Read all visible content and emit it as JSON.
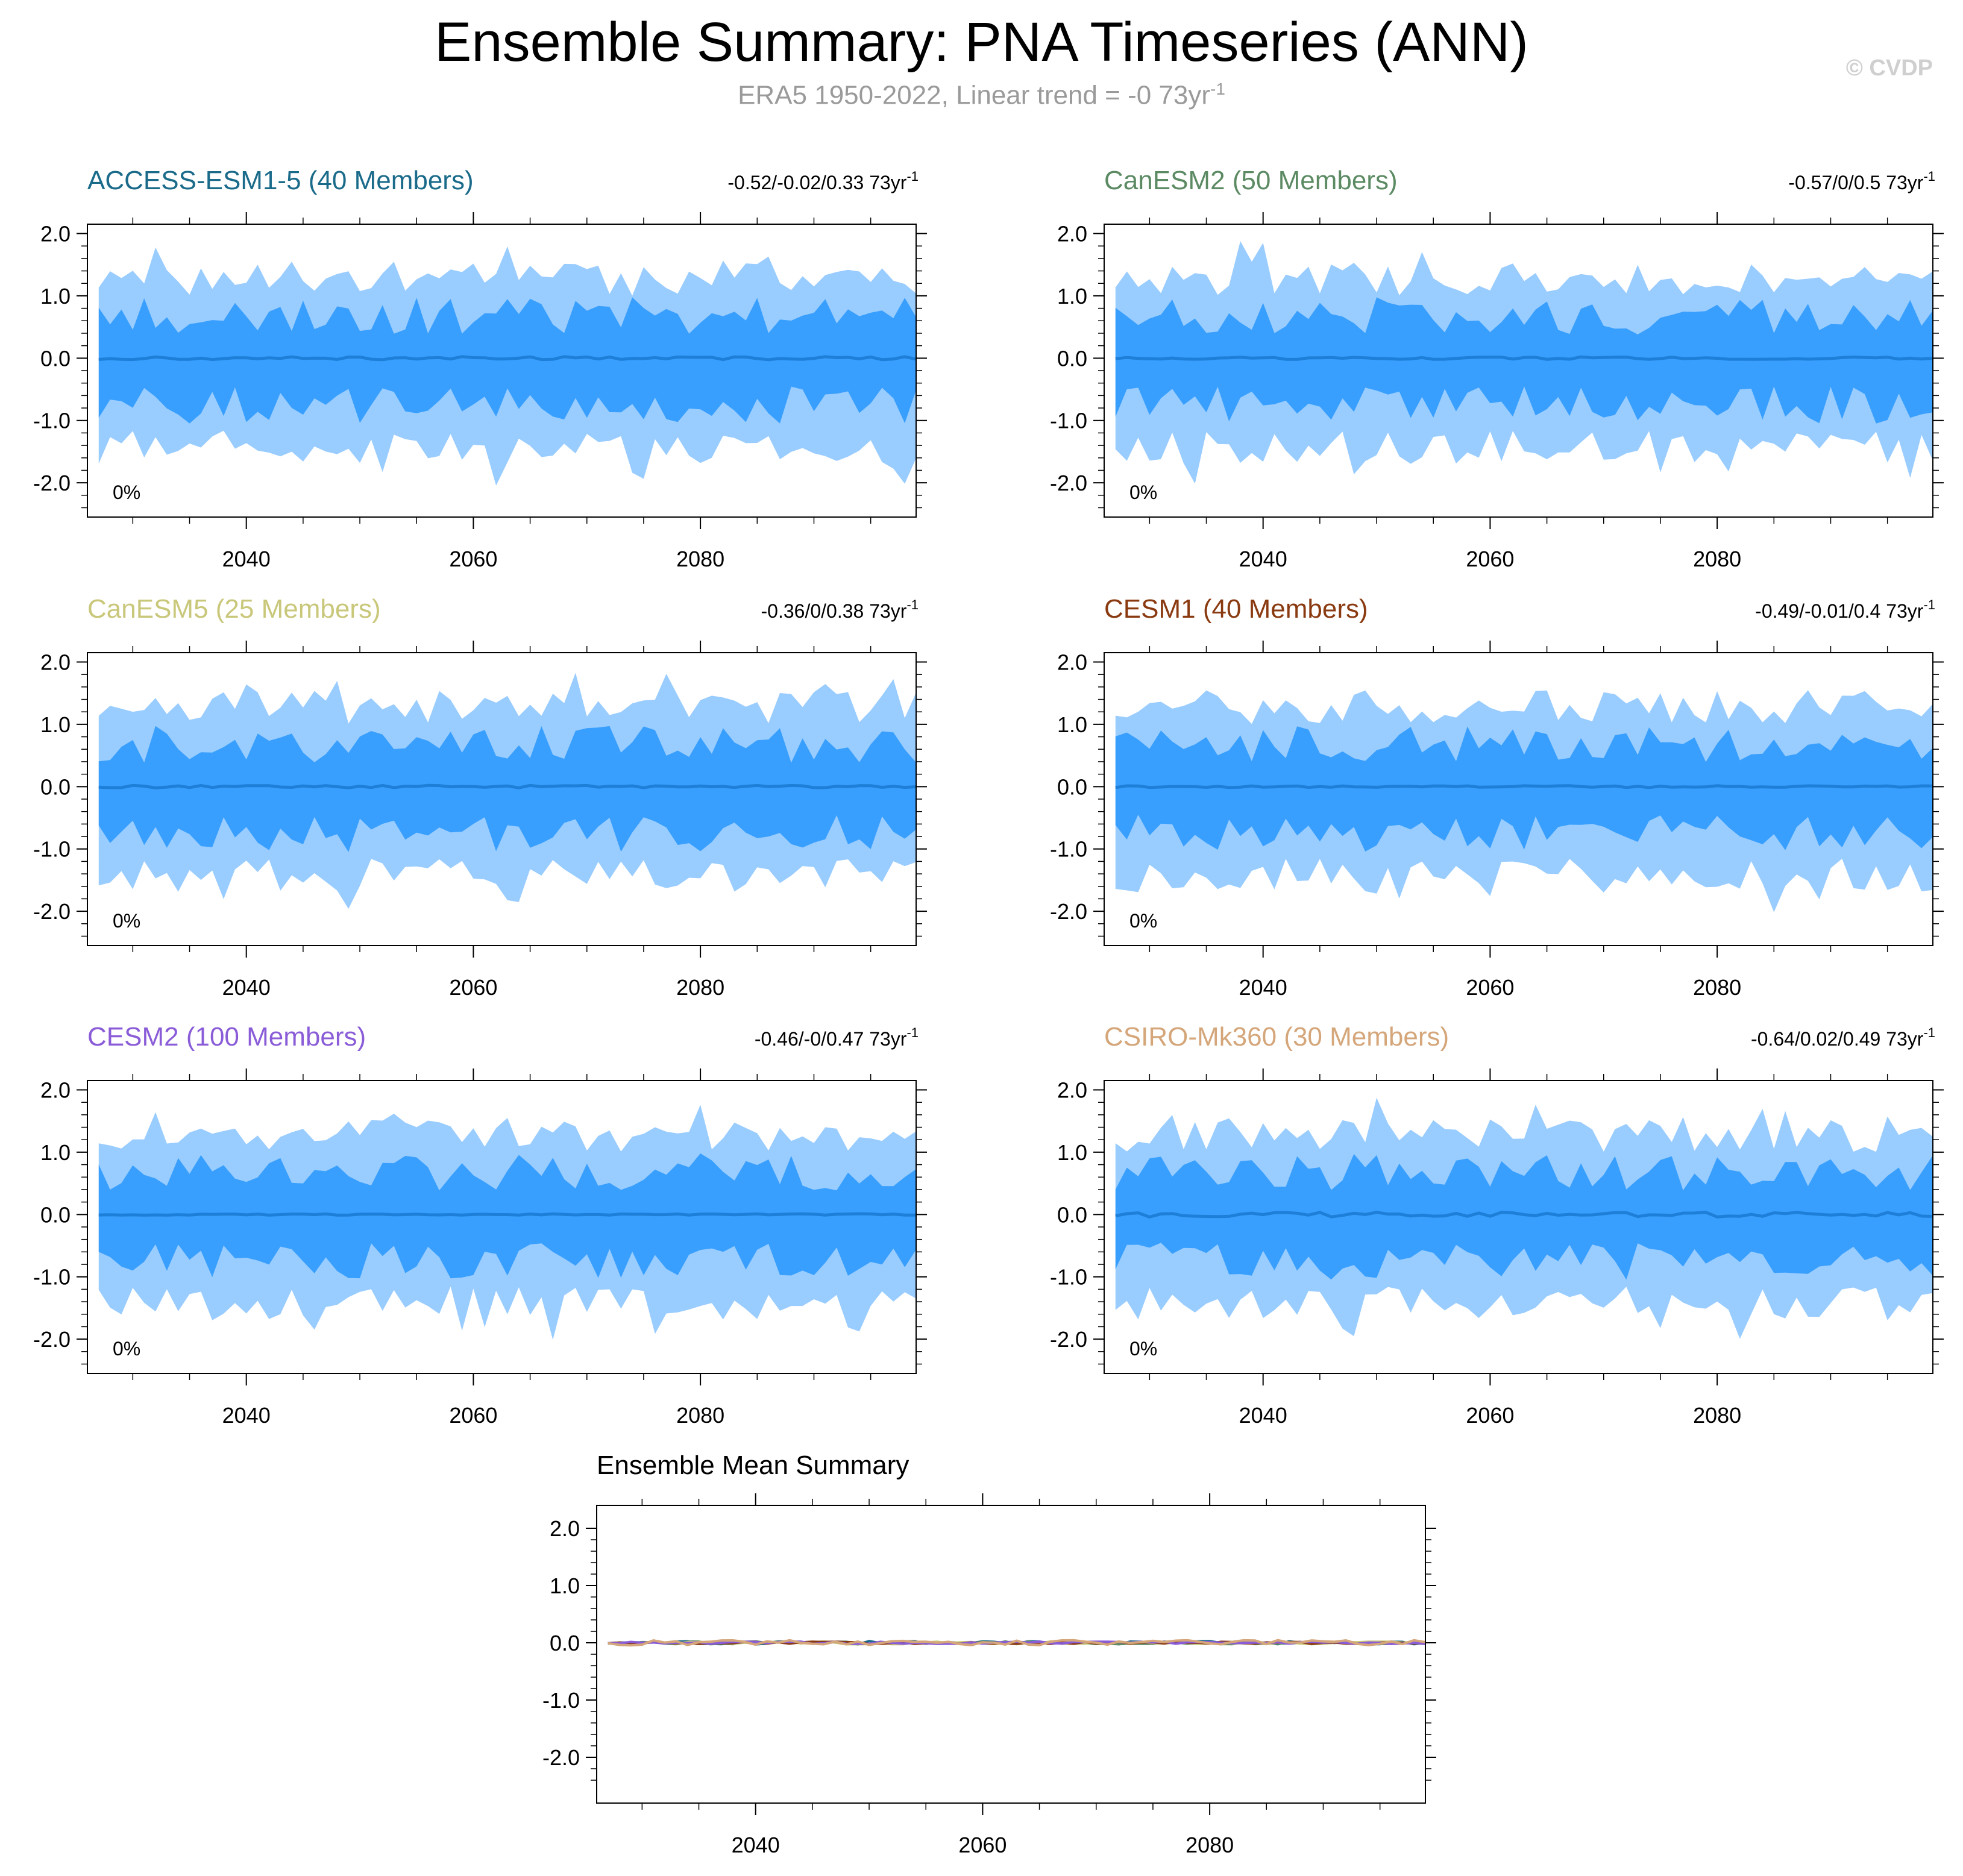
{
  "figure": {
    "title": "Ensemble Summary: PNA Timeseries (ANN)",
    "subtitle_main": "ERA5 1950-2022, Linear trend = -0 73yr",
    "subtitle_sup": "-1",
    "copyright": "© CVDP"
  },
  "colors": {
    "outer_band": "#99ccff",
    "inner_band": "#389ffe",
    "mean_line": "#1e7fd8"
  },
  "chart_data": [
    {
      "type": "area",
      "id": "access",
      "title": "ACCESS-ESM1-5 (40 Members)",
      "title_color": "#1a6a8a",
      "stats": "-0.52/-0.02/0.33 73yr",
      "stats_sup": "-1",
      "pct_label": "0%",
      "xlim": [
        2026,
        2099
      ],
      "ylim": [
        -2.55,
        2.15
      ],
      "yticks": [
        "2.0",
        "1.0",
        "0.0",
        "-1.0",
        "-2.0"
      ],
      "xticks": [
        "2040",
        "2060",
        "2080"
      ],
      "seed": 11,
      "mean_amp": 0.025
    },
    {
      "type": "area",
      "id": "canesm2",
      "title": "CanESM2 (50 Members)",
      "title_color": "#5b8a63",
      "stats": "-0.57/0/0.5 73yr",
      "stats_sup": "-1",
      "pct_label": "0%",
      "xlim": [
        2026,
        2099
      ],
      "ylim": [
        -2.55,
        2.15
      ],
      "yticks": [
        "2.0",
        "1.0",
        "0.0",
        "-1.0",
        "-2.0"
      ],
      "xticks": [
        "2040",
        "2060",
        "2080"
      ],
      "seed": 23,
      "mean_amp": 0.02
    },
    {
      "type": "area",
      "id": "canesm5",
      "title": "CanESM5 (25 Members)",
      "title_color": "#c9c77a",
      "stats": "-0.36/0/0.38 73yr",
      "stats_sup": "-1",
      "pct_label": "0%",
      "xlim": [
        2026,
        2099
      ],
      "ylim": [
        -2.55,
        2.15
      ],
      "yticks": [
        "2.0",
        "1.0",
        "0.0",
        "-1.0",
        "-2.0"
      ],
      "xticks": [
        "2040",
        "2060",
        "2080"
      ],
      "seed": 37,
      "mean_amp": 0.02
    },
    {
      "type": "area",
      "id": "cesm1",
      "title": "CESM1 (40 Members)",
      "title_color": "#8a3a10",
      "stats": "-0.49/-0.01/0.4 73yr",
      "stats_sup": "-1",
      "pct_label": "0%",
      "xlim": [
        2026,
        2099
      ],
      "ylim": [
        -2.55,
        2.15
      ],
      "yticks": [
        "2.0",
        "1.0",
        "0.0",
        "-1.0",
        "-2.0"
      ],
      "xticks": [
        "2040",
        "2060",
        "2080"
      ],
      "seed": 41,
      "mean_amp": 0.015
    },
    {
      "type": "area",
      "id": "cesm2",
      "title": "CESM2 (100 Members)",
      "title_color": "#8a5cd8",
      "stats": "-0.46/-0/0.47 73yr",
      "stats_sup": "-1",
      "pct_label": "0%",
      "xlim": [
        2026,
        2099
      ],
      "ylim": [
        -2.55,
        2.15
      ],
      "yticks": [
        "2.0",
        "1.0",
        "0.0",
        "-1.0",
        "-2.0"
      ],
      "xticks": [
        "2040",
        "2060",
        "2080"
      ],
      "seed": 53,
      "mean_amp": 0.012
    },
    {
      "type": "area",
      "id": "csiro",
      "title": "CSIRO-Mk360 (30 Members)",
      "title_color": "#d4a67a",
      "stats": "-0.64/0.02/0.49 73yr",
      "stats_sup": "-1",
      "pct_label": "0%",
      "xlim": [
        2026,
        2099
      ],
      "ylim": [
        -2.55,
        2.15
      ],
      "yticks": [
        "2.0",
        "1.0",
        "0.0",
        "-1.0",
        "-2.0"
      ],
      "xticks": [
        "2040",
        "2060",
        "2080"
      ],
      "seed": 67,
      "mean_amp": 0.04
    },
    {
      "type": "line",
      "id": "ens-mean",
      "title": "Ensemble Mean Summary",
      "title_color": "#000000",
      "xlim": [
        2026,
        2099
      ],
      "ylim": [
        -2.8,
        2.4
      ],
      "yticks": [
        "2.0",
        "1.0",
        "0.0",
        "-1.0",
        "-2.0"
      ],
      "xticks": [
        "2040",
        "2060",
        "2080"
      ],
      "series": [
        {
          "name": "ACCESS-ESM1-5",
          "color": "#1a6a8a",
          "seed": 11,
          "amp": 0.03
        },
        {
          "name": "CanESM2",
          "color": "#5b8a63",
          "seed": 23,
          "amp": 0.025
        },
        {
          "name": "CanESM5",
          "color": "#c9c77a",
          "seed": 37,
          "amp": 0.025
        },
        {
          "name": "CESM1",
          "color": "#8a3a10",
          "seed": 41,
          "amp": 0.02
        },
        {
          "name": "CESM2",
          "color": "#8a5cd8",
          "seed": 53,
          "amp": 0.02
        },
        {
          "name": "CSIRO-Mk360",
          "color": "#d4a67a",
          "seed": 67,
          "amp": 0.045
        }
      ]
    }
  ]
}
